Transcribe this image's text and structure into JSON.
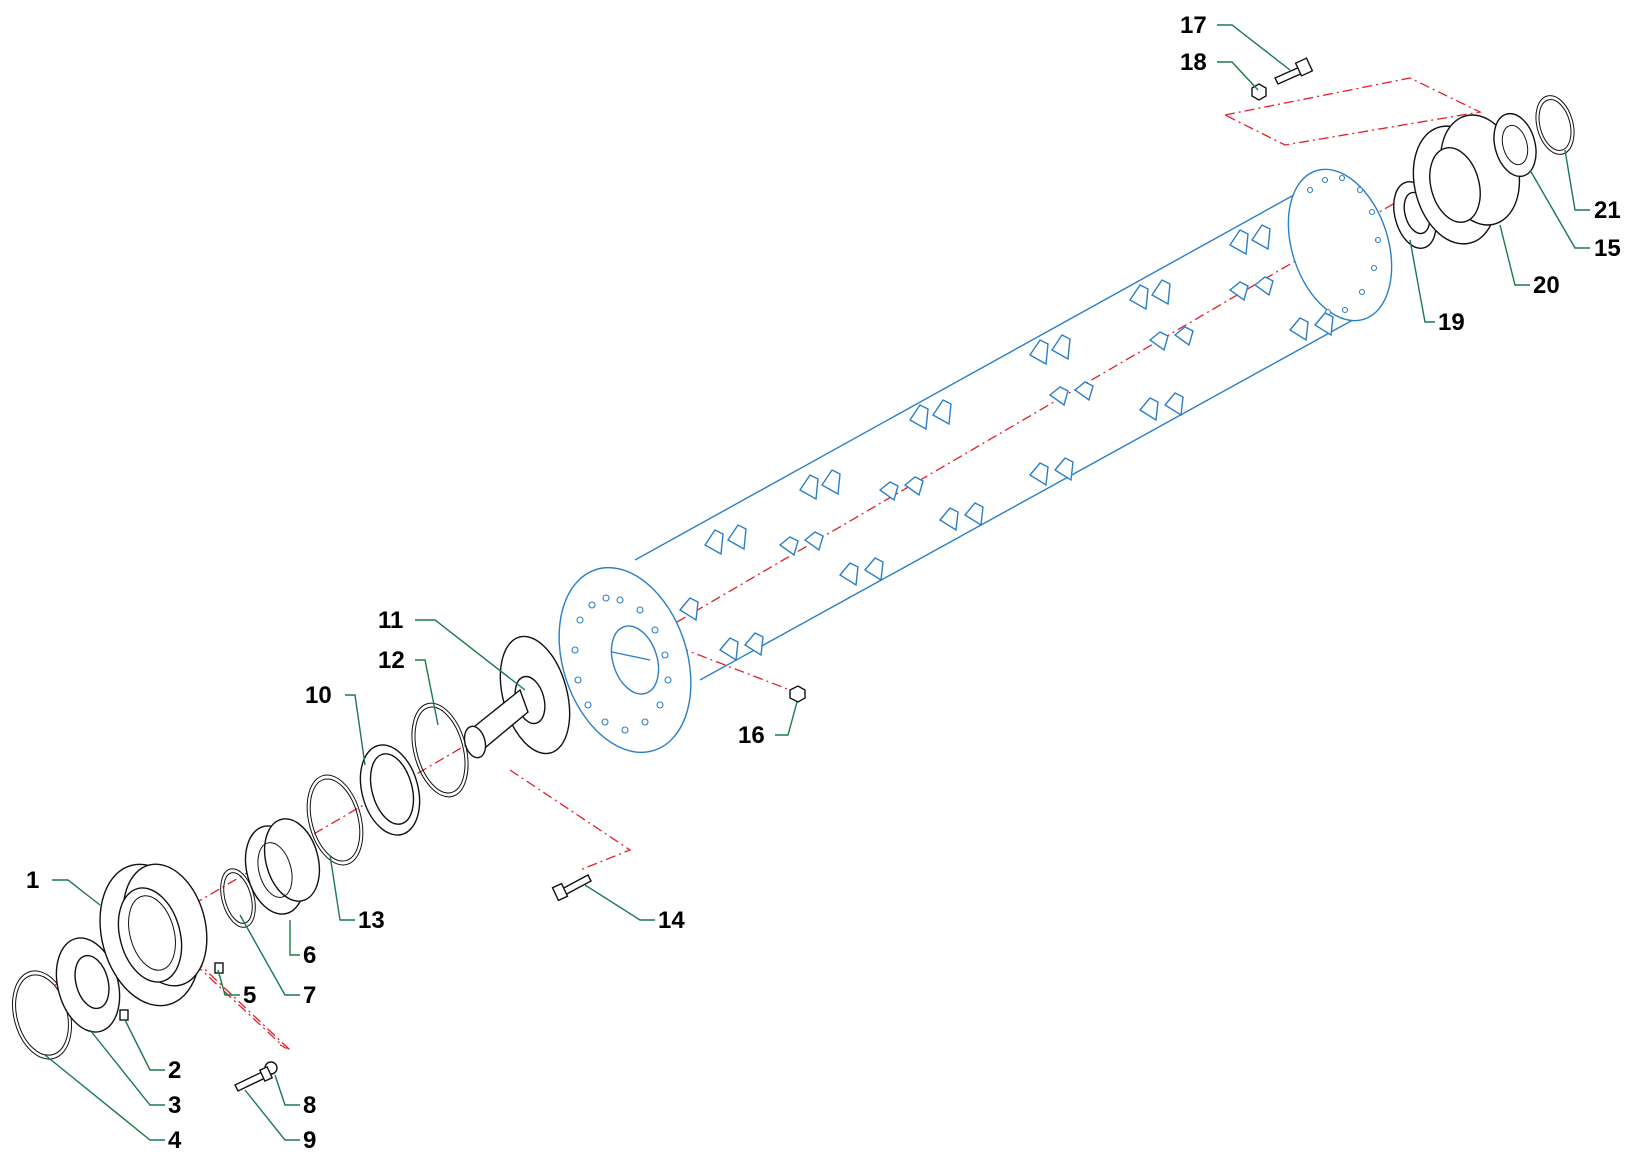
{
  "callouts": [
    {
      "id": "1",
      "label": "1"
    },
    {
      "id": "2",
      "label": "2"
    },
    {
      "id": "3",
      "label": "3"
    },
    {
      "id": "4",
      "label": "4"
    },
    {
      "id": "5",
      "label": "5"
    },
    {
      "id": "6",
      "label": "6"
    },
    {
      "id": "7",
      "label": "7"
    },
    {
      "id": "8",
      "label": "8"
    },
    {
      "id": "9",
      "label": "9"
    },
    {
      "id": "10",
      "label": "10"
    },
    {
      "id": "11",
      "label": "11"
    },
    {
      "id": "12",
      "label": "12"
    },
    {
      "id": "13",
      "label": "13"
    },
    {
      "id": "14",
      "label": "14"
    },
    {
      "id": "15",
      "label": "15"
    },
    {
      "id": "16",
      "label": "16"
    },
    {
      "id": "17",
      "label": "17"
    },
    {
      "id": "18",
      "label": "18"
    },
    {
      "id": "19",
      "label": "19"
    },
    {
      "id": "20",
      "label": "20"
    },
    {
      "id": "21",
      "label": "21"
    }
  ],
  "colors": {
    "rotor": "#2a7fc8",
    "leader": "#1a7a4a",
    "axis": "#e0202a",
    "parts": "#111111"
  }
}
